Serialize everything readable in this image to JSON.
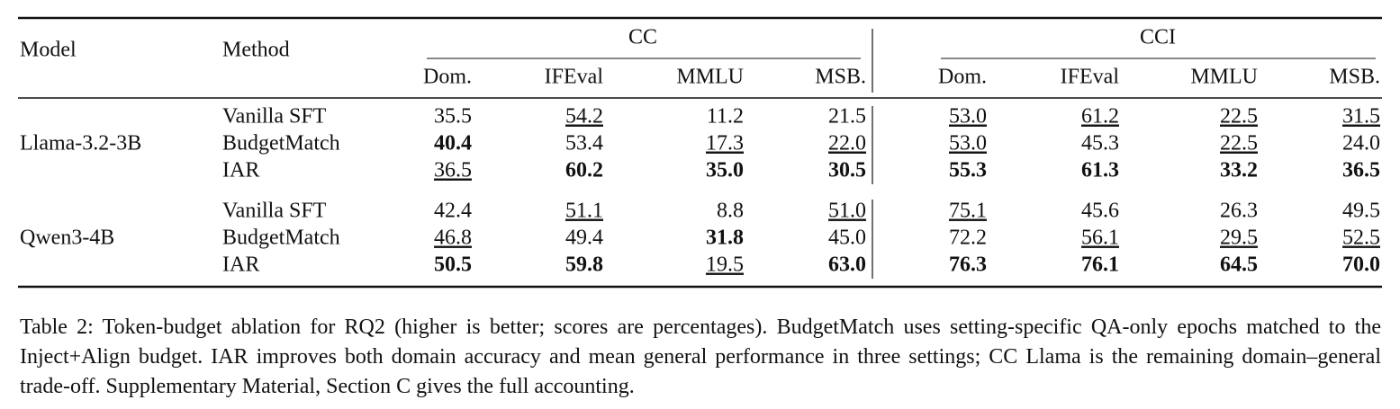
{
  "table": {
    "header": {
      "model": "Model",
      "method": "Method",
      "groups": [
        {
          "name": "CC",
          "columns": [
            "Dom.",
            "IFEval",
            "MMLU",
            "MSB."
          ]
        },
        {
          "name": "CCI",
          "columns": [
            "Dom.",
            "IFEval",
            "MMLU",
            "MSB."
          ]
        }
      ]
    },
    "blocks": [
      {
        "model": "Llama-3.2-3B",
        "rows": [
          {
            "method": "Vanilla SFT",
            "scores": [
              "35.5",
              "54.2",
              "11.2",
              "21.5",
              "53.0",
              "61.2",
              "22.5",
              "31.5"
            ],
            "bold": [],
            "underline": [
              1,
              4,
              5,
              6,
              7
            ]
          },
          {
            "method": "BudgetMatch",
            "scores": [
              "40.4",
              "53.4",
              "17.3",
              "22.0",
              "53.0",
              "45.3",
              "22.5",
              "24.0"
            ],
            "bold": [
              0
            ],
            "underline": [
              2,
              3,
              4,
              6
            ]
          },
          {
            "method": "IAR",
            "scores": [
              "36.5",
              "60.2",
              "35.0",
              "30.5",
              "55.3",
              "61.3",
              "33.2",
              "36.5"
            ],
            "bold": [
              1,
              2,
              3,
              4,
              5,
              6,
              7
            ],
            "underline": [
              0
            ]
          }
        ]
      },
      {
        "model": "Qwen3-4B",
        "rows": [
          {
            "method": "Vanilla SFT",
            "scores": [
              "42.4",
              "51.1",
              "8.8",
              "51.0",
              "75.1",
              "45.6",
              "26.3",
              "49.5"
            ],
            "bold": [],
            "underline": [
              1,
              3,
              4
            ]
          },
          {
            "method": "BudgetMatch",
            "scores": [
              "46.8",
              "49.4",
              "31.8",
              "45.0",
              "72.2",
              "56.1",
              "29.5",
              "52.5"
            ],
            "bold": [
              2
            ],
            "underline": [
              0,
              5,
              6,
              7
            ]
          },
          {
            "method": "IAR",
            "scores": [
              "50.5",
              "59.8",
              "19.5",
              "63.0",
              "76.3",
              "76.1",
              "64.5",
              "70.0"
            ],
            "bold": [
              0,
              1,
              3,
              4,
              5,
              6,
              7
            ],
            "underline": [
              2
            ]
          }
        ]
      }
    ],
    "caption": "Table 2: Token-budget ablation for RQ2 (higher is better; scores are percentages). BudgetMatch uses setting-specific QA-only epochs matched to the Inject+Align budget. IAR improves both domain accuracy and mean general performance in three settings; CC Llama is the remaining domain–general trade-off. Supplementary Material, Section C gives the full accounting."
  }
}
